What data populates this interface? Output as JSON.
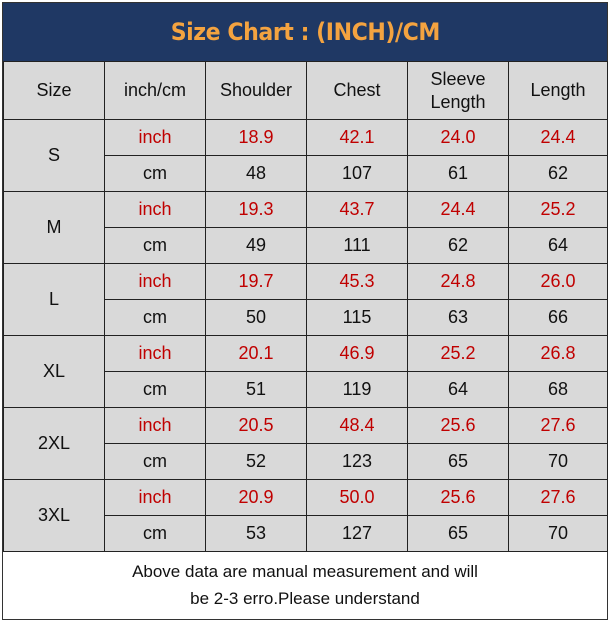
{
  "title": "Size Chart : (INCH)/CM",
  "columns": [
    "Size",
    "inch/cm",
    "Shoulder",
    "Chest",
    "Sleeve Length",
    "Length"
  ],
  "sleeve_label": {
    "line1": "Sleeve",
    "line2": "Length"
  },
  "rows": [
    {
      "size": "S",
      "inch": {
        "unit": "inch",
        "shoulder": "18.9",
        "chest": "42.1",
        "sleeve": "24.0",
        "length": "24.4"
      },
      "cm": {
        "unit": "cm",
        "shoulder": "48",
        "chest": "107",
        "sleeve": "61",
        "length": "62"
      }
    },
    {
      "size": "M",
      "inch": {
        "unit": "inch",
        "shoulder": "19.3",
        "chest": "43.7",
        "sleeve": "24.4",
        "length": "25.2"
      },
      "cm": {
        "unit": "cm",
        "shoulder": "49",
        "chest": "111",
        "sleeve": "62",
        "length": "64"
      }
    },
    {
      "size": "L",
      "inch": {
        "unit": "inch",
        "shoulder": "19.7",
        "chest": "45.3",
        "sleeve": "24.8",
        "length": "26.0"
      },
      "cm": {
        "unit": "cm",
        "shoulder": "50",
        "chest": "115",
        "sleeve": "63",
        "length": "66"
      }
    },
    {
      "size": "XL",
      "inch": {
        "unit": "inch",
        "shoulder": "20.1",
        "chest": "46.9",
        "sleeve": "25.2",
        "length": "26.8"
      },
      "cm": {
        "unit": "cm",
        "shoulder": "51",
        "chest": "119",
        "sleeve": "64",
        "length": "68"
      }
    },
    {
      "size": "2XL",
      "inch": {
        "unit": "inch",
        "shoulder": "20.5",
        "chest": "48.4",
        "sleeve": "25.6",
        "length": "27.6"
      },
      "cm": {
        "unit": "cm",
        "shoulder": "52",
        "chest": "123",
        "sleeve": "65",
        "length": "70"
      }
    },
    {
      "size": "3XL",
      "inch": {
        "unit": "inch",
        "shoulder": "20.9",
        "chest": "50.0",
        "sleeve": "25.6",
        "length": "27.6"
      },
      "cm": {
        "unit": "cm",
        "shoulder": "53",
        "chest": "127",
        "sleeve": "65",
        "length": "70"
      }
    }
  ],
  "note": {
    "line1": "Above data are manual measurement and will",
    "line2": "be 2-3 erro.Please understand"
  },
  "colors": {
    "title_bg": "#1f3864",
    "title_text": "#f4a340",
    "inch_text": "#c00000",
    "cell_bg": "#d9d9d9"
  }
}
